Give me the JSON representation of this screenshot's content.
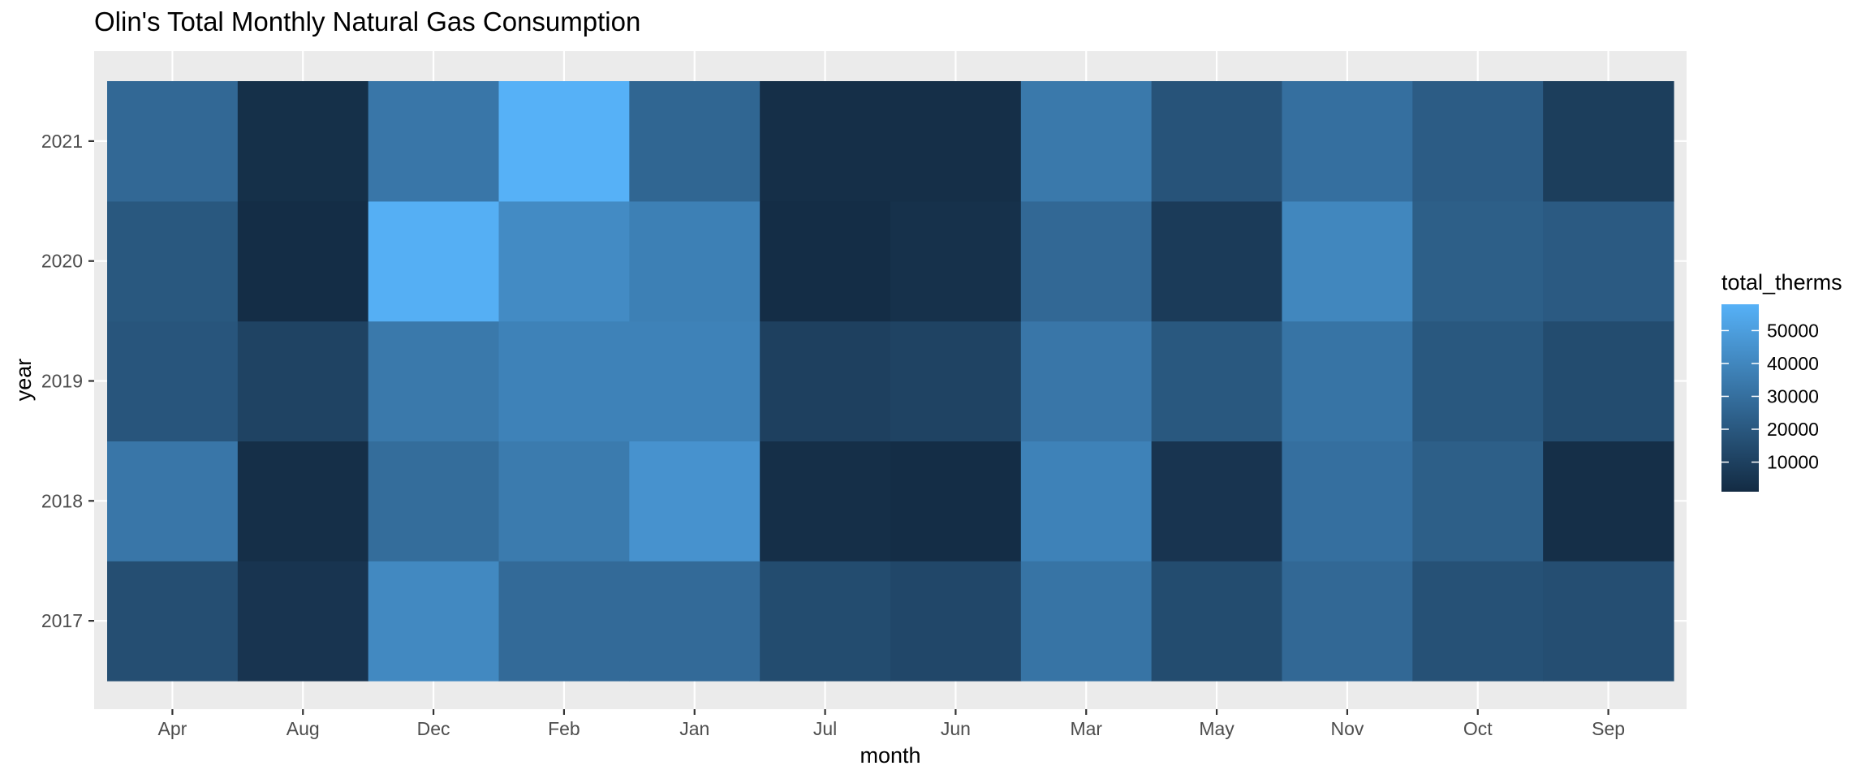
{
  "chart_data": {
    "type": "heatmap",
    "title": "Olin's Total Monthly Natural Gas Consumption",
    "xlabel": "month",
    "ylabel": "year",
    "x_categories": [
      "Apr",
      "Aug",
      "Dec",
      "Feb",
      "Jan",
      "Jul",
      "Jun",
      "Mar",
      "May",
      "Nov",
      "Oct",
      "Sep"
    ],
    "y_categories": [
      "2017",
      "2018",
      "2019",
      "2020",
      "2021"
    ],
    "values": {
      "2021": [
        27000,
        3000,
        33000,
        58000,
        26000,
        2500,
        2500,
        34000,
        18000,
        30000,
        22000,
        9000
      ],
      "2020": [
        20000,
        2000,
        57000,
        42000,
        37000,
        2000,
        3500,
        27000,
        8000,
        40000,
        23000,
        21000
      ],
      "2019": [
        19000,
        11000,
        34000,
        38000,
        38000,
        10000,
        11000,
        33000,
        20000,
        32000,
        20000,
        15000
      ],
      "2018": [
        33000,
        2500,
        29000,
        35000,
        45000,
        2500,
        2000,
        38000,
        5000,
        30000,
        23000,
        2500
      ],
      "2017": [
        16000,
        5000,
        41000,
        28000,
        28000,
        15000,
        13000,
        32000,
        15000,
        27000,
        17000,
        16000
      ]
    },
    "legend": {
      "title": "total_therms",
      "breaks": [
        10000,
        20000,
        30000,
        40000,
        50000
      ],
      "labels": [
        "10000",
        "20000",
        "30000",
        "40000",
        "50000"
      ],
      "range": [
        1000,
        58000
      ],
      "low_color": "#132B43",
      "high_color": "#56B1F7",
      "position": "right"
    },
    "panel_background": "#EBEBEB",
    "grid": true
  }
}
